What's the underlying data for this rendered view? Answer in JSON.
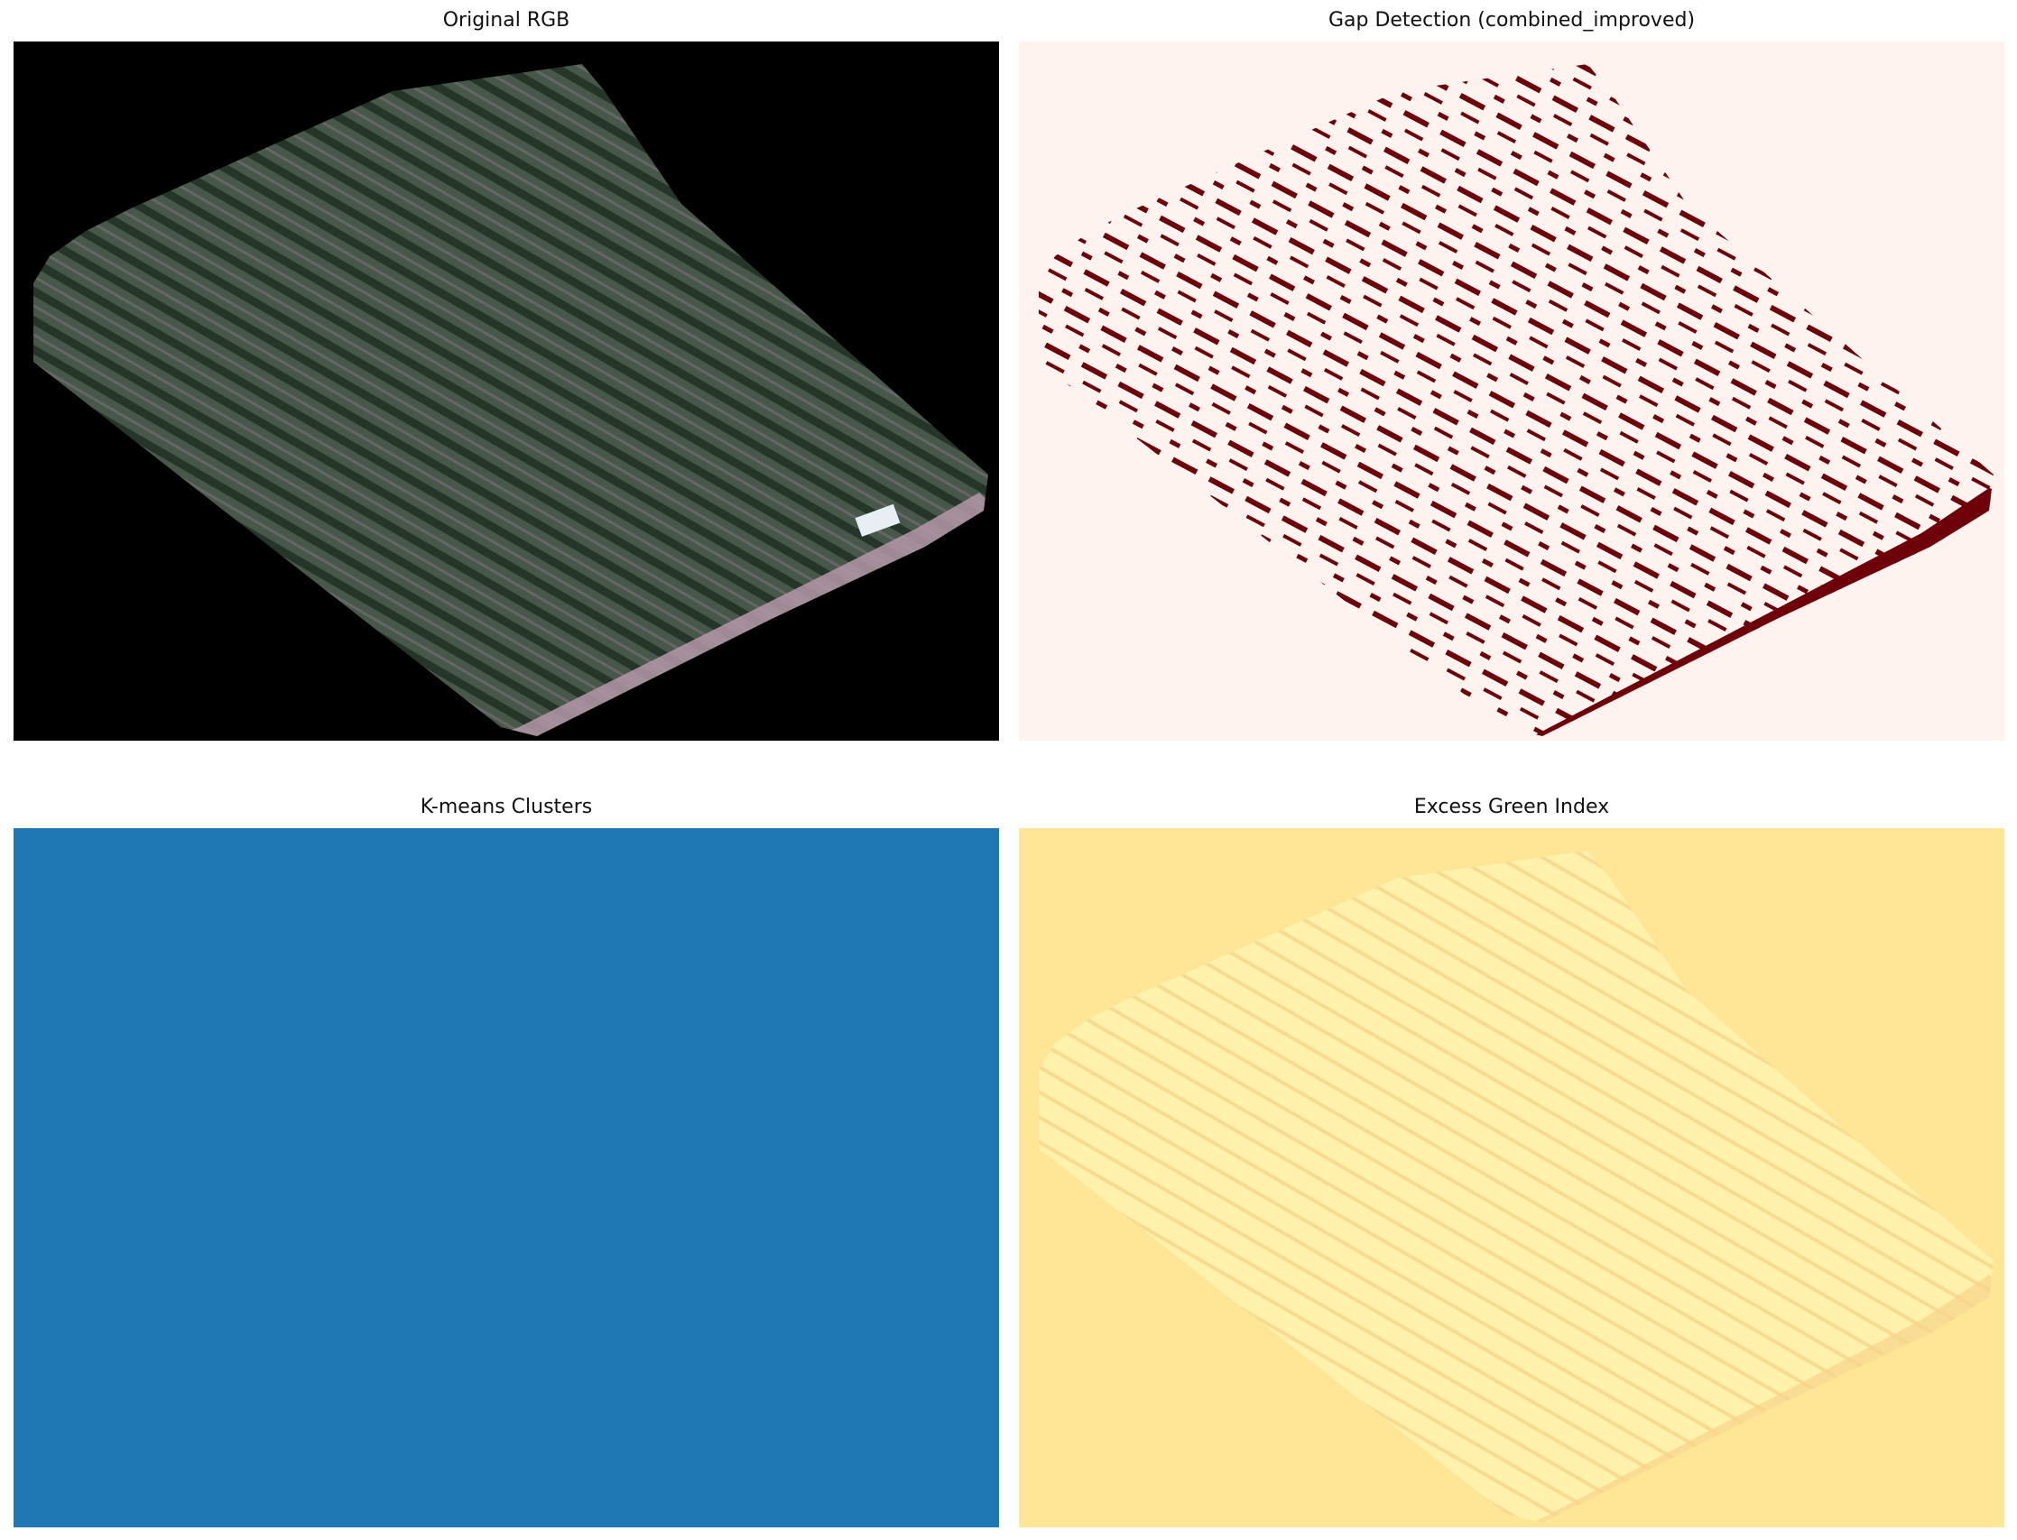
{
  "panels": [
    {
      "title": "Original RGB",
      "background": "#000000",
      "field": "#3f4a40",
      "row": "#2b3a2f",
      "path": "#b598a8"
    },
    {
      "title": "Gap Detection (combined_improved)",
      "background": "#fff3ef",
      "gap": "#6d0009"
    },
    {
      "title": "K-means Clusters",
      "background": "#1f77b4"
    },
    {
      "title": "Excess Green Index",
      "background": "#fee696",
      "field": "#fff2ad",
      "low": "#f8d48a"
    }
  ]
}
